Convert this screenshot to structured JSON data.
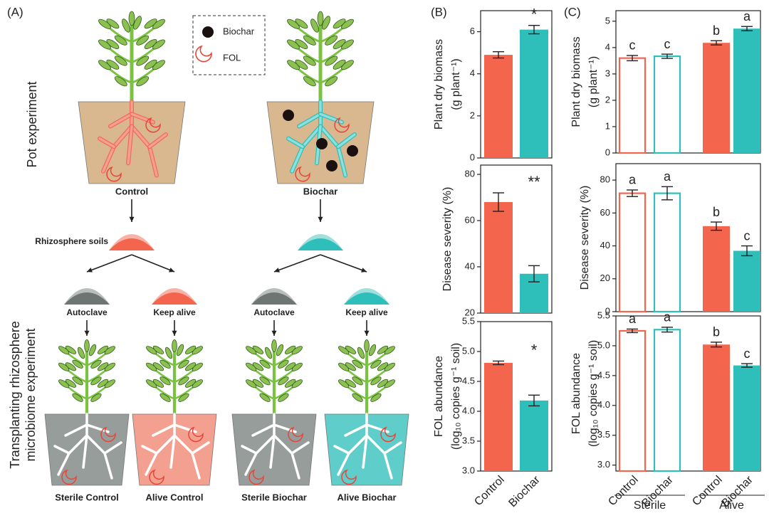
{
  "schematic": {
    "panel_label": "(A)",
    "legend": [
      "Biochar",
      "FOL"
    ],
    "row1_label": "Pot experiment",
    "pots": [
      "Control",
      "Biochar"
    ],
    "soil_label": "Rhizosphere soils",
    "treatments": [
      "Autoclave",
      "Keep alive",
      "Autoclave",
      "Keep alive"
    ],
    "row2_label": [
      "Transplanting rhizosphere",
      "microbiome experiment"
    ],
    "final_pots": [
      "Sterile Control",
      "Alive Control",
      "Sterile Biochar",
      "Alive Biochar"
    ]
  },
  "panel_labels": [
    "(B)",
    "(C)"
  ],
  "chart_data": [
    {
      "type": "bar",
      "ylabel": [
        "Plant dry biomass",
        "(g plant⁻¹)"
      ],
      "values": [
        4.9,
        6.1
      ],
      "errors": [
        0.15,
        0.2
      ],
      "colors": [
        "#f4654e",
        "#2fbfbb"
      ],
      "annotation": "*",
      "ylim": [
        0,
        7
      ],
      "yticks": [
        0,
        2,
        4,
        6
      ]
    },
    {
      "type": "bar",
      "ylabel": [
        "Disease severity (%)"
      ],
      "values": [
        68,
        37
      ],
      "errors": [
        4,
        3.5
      ],
      "colors": [
        "#f4654e",
        "#2fbfbb"
      ],
      "annotation": "**",
      "ylim": [
        20,
        84
      ],
      "yticks": [
        20,
        40,
        60,
        80
      ]
    },
    {
      "type": "bar",
      "ylabel": [
        "FOL abundance",
        "(log₁₀ copies g⁻¹ soil)"
      ],
      "categories": [
        "Control",
        "Biochar"
      ],
      "values": [
        4.81,
        4.18
      ],
      "errors": [
        0.03,
        0.09
      ],
      "colors": [
        "#f4654e",
        "#2fbfbb"
      ],
      "annotation": "*",
      "ylim": [
        3.0,
        5.5
      ],
      "yticks": [
        {
          "value": 3,
          "label": "3.0"
        },
        3.5,
        {
          "value": 4,
          "label": "4.0"
        },
        4.5,
        {
          "value": 5,
          "label": "5.0"
        },
        5.5
      ]
    },
    {
      "type": "bar",
      "ylabel": [
        "Plant dry biomass",
        "(g plant⁻¹)"
      ],
      "values": [
        3.6,
        3.67,
        4.18,
        4.72
      ],
      "errors": [
        0.1,
        0.08,
        0.08,
        0.08
      ],
      "colors": [
        "#f4654e",
        "#2fbfbb",
        "#f4654e",
        "#2fbfbb"
      ],
      "hollow": [
        true,
        true,
        false,
        false
      ],
      "letters": [
        "c",
        "c",
        "b",
        "a"
      ],
      "ylim": [
        0,
        5.4
      ],
      "yticks": [
        0,
        1,
        2,
        3,
        4,
        5
      ]
    },
    {
      "type": "bar",
      "ylabel": [
        "Disease severity (%)"
      ],
      "values": [
        72,
        72,
        52,
        37
      ],
      "errors": [
        2,
        4,
        2.5,
        3
      ],
      "colors": [
        "#f4654e",
        "#2fbfbb",
        "#f4654e",
        "#2fbfbb"
      ],
      "hollow": [
        true,
        true,
        false,
        false
      ],
      "letters": [
        "a",
        "a",
        "b",
        "c"
      ],
      "ylim": [
        0,
        90
      ],
      "yticks": [
        0,
        20,
        40,
        60,
        80
      ]
    },
    {
      "type": "bar",
      "ylabel": [
        "FOL abundance",
        "(log₁₀ copies g⁻¹ soil)"
      ],
      "categories": [
        "Control",
        "Biochar",
        "Control",
        "Biochar"
      ],
      "groups": [
        "Sterile",
        "Alive"
      ],
      "values": [
        5.25,
        5.27,
        5.02,
        4.67
      ],
      "errors": [
        0.03,
        0.04,
        0.04,
        0.03
      ],
      "colors": [
        "#f4654e",
        "#2fbfbb",
        "#f4654e",
        "#2fbfbb"
      ],
      "hollow": [
        true,
        true,
        false,
        false
      ],
      "letters": [
        "a",
        "a",
        "b",
        "c"
      ],
      "ylim": [
        2.9,
        5.5
      ],
      "yticks": [
        {
          "value": 3,
          "label": "3.0"
        },
        3.5,
        {
          "value": 4,
          "label": "4.0"
        },
        4.5,
        {
          "value": 5,
          "label": "5.0"
        },
        5.5
      ]
    }
  ]
}
